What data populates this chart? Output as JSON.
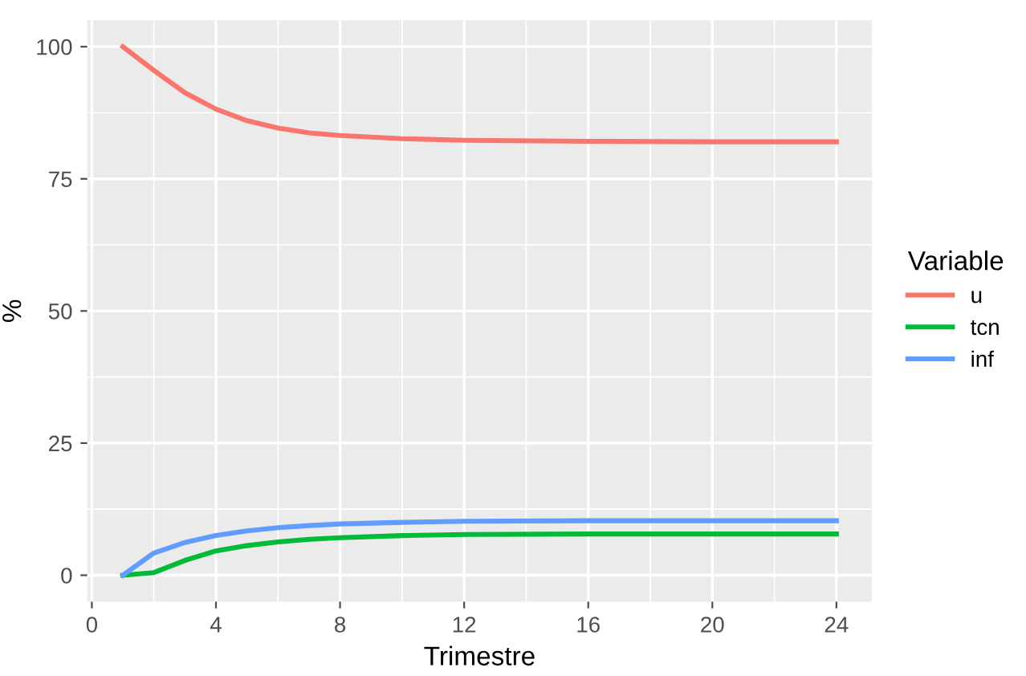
{
  "chart_data": {
    "type": "line",
    "xlabel": "Trimestre",
    "ylabel": "%",
    "legend_title": "Variable",
    "legend": "right",
    "grid": true,
    "xlim": [
      -0.15,
      25.15
    ],
    "ylim": [
      -5,
      105
    ],
    "xticks": [
      0,
      4,
      8,
      12,
      16,
      20,
      24
    ],
    "yticks": [
      0,
      25,
      50,
      75,
      100
    ],
    "x": [
      1,
      2,
      3,
      4,
      5,
      6,
      7,
      8,
      10,
      12,
      16,
      20,
      24
    ],
    "series": [
      {
        "name": "u",
        "color": "#f8766d",
        "values": [
          100,
          95.5,
          91.3,
          88.2,
          86.0,
          84.6,
          83.7,
          83.2,
          82.6,
          82.3,
          82.1,
          82.0,
          82.0
        ]
      },
      {
        "name": "tcn",
        "color": "#00ba38",
        "values": [
          0,
          0.5,
          2.8,
          4.6,
          5.6,
          6.3,
          6.8,
          7.1,
          7.5,
          7.7,
          7.8,
          7.8,
          7.8
        ]
      },
      {
        "name": "inf",
        "color": "#619cff",
        "values": [
          0,
          4.2,
          6.2,
          7.5,
          8.4,
          9.0,
          9.4,
          9.7,
          10.0,
          10.2,
          10.3,
          10.3,
          10.3
        ]
      }
    ]
  }
}
